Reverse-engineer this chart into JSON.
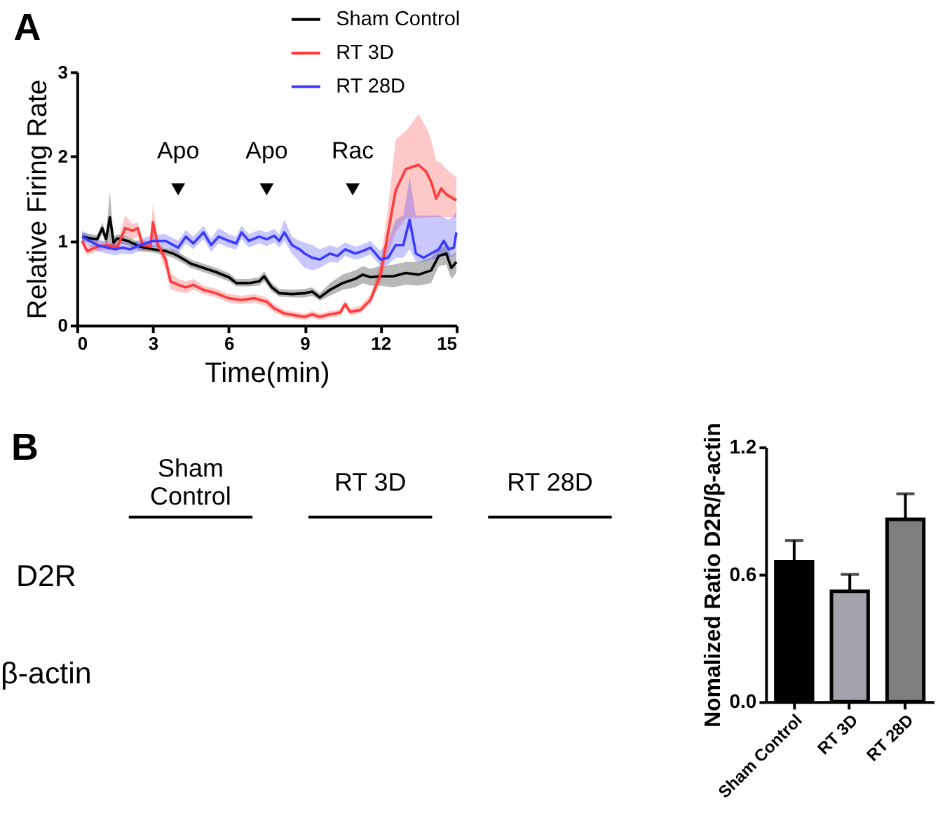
{
  "chart_data": [
    {
      "type": "line",
      "title": "A",
      "xlabel": "Time(min)",
      "ylabel": "Relative Firing Rate",
      "xlim": [
        0,
        15
      ],
      "xticks": [
        0,
        3,
        6,
        9,
        12,
        15
      ],
      "ylim": [
        0,
        3
      ],
      "yticks": [
        0,
        1,
        2,
        3
      ],
      "legend": "top right",
      "series": [
        {
          "name": "Sham Control",
          "color": "#000000",
          "x": [
            0.2,
            0.5,
            0.8,
            1.0,
            1.15,
            1.3,
            1.45,
            1.6,
            2.0,
            2.5,
            3.0,
            3.5,
            3.8,
            4.0,
            4.5,
            5.0,
            5.5,
            6.0,
            6.3,
            6.8,
            7.2,
            7.4,
            7.7,
            8.0,
            8.5,
            9.0,
            9.3,
            9.6,
            10.0,
            10.5,
            11.0,
            11.3,
            11.6,
            12.0,
            12.5,
            13.0,
            13.5,
            14.0,
            14.3,
            14.6,
            14.8,
            15.0
          ],
          "values": [
            1.05,
            1.03,
            1.02,
            1.15,
            1.02,
            1.28,
            0.98,
            1.03,
            1.0,
            0.93,
            0.9,
            0.88,
            0.85,
            0.82,
            0.73,
            0.68,
            0.63,
            0.57,
            0.5,
            0.5,
            0.52,
            0.58,
            0.45,
            0.38,
            0.37,
            0.38,
            0.4,
            0.33,
            0.42,
            0.5,
            0.55,
            0.6,
            0.57,
            0.58,
            0.58,
            0.62,
            0.6,
            0.65,
            0.82,
            0.85,
            0.68,
            0.75
          ],
          "lower": [
            1.0,
            0.98,
            0.97,
            1.08,
            0.96,
            1.0,
            0.93,
            0.98,
            0.95,
            0.88,
            0.86,
            0.83,
            0.8,
            0.77,
            0.68,
            0.63,
            0.58,
            0.52,
            0.46,
            0.46,
            0.47,
            0.52,
            0.4,
            0.34,
            0.33,
            0.33,
            0.35,
            0.29,
            0.35,
            0.42,
            0.45,
            0.5,
            0.47,
            0.47,
            0.45,
            0.48,
            0.47,
            0.5,
            0.7,
            0.72,
            0.55,
            0.62
          ],
          "upper": [
            1.1,
            1.08,
            1.07,
            1.22,
            1.08,
            1.58,
            1.05,
            1.08,
            1.05,
            0.98,
            0.95,
            0.92,
            0.9,
            0.87,
            0.78,
            0.73,
            0.68,
            0.62,
            0.55,
            0.55,
            0.57,
            0.64,
            0.5,
            0.43,
            0.42,
            0.43,
            0.45,
            0.38,
            0.5,
            0.6,
            0.65,
            0.7,
            0.67,
            0.7,
            0.72,
            0.75,
            0.75,
            0.8,
            0.9,
            0.95,
            0.82,
            0.88
          ]
        },
        {
          "name": "RT 3D",
          "color": "#ff3b3b",
          "x": [
            0.2,
            0.4,
            0.8,
            1.2,
            1.6,
            1.9,
            2.2,
            2.4,
            2.6,
            2.9,
            3.0,
            3.2,
            3.5,
            3.7,
            4.0,
            4.3,
            4.6,
            5.0,
            5.5,
            6.0,
            6.5,
            7.0,
            7.5,
            7.8,
            8.2,
            8.6,
            9.0,
            9.3,
            9.6,
            10.0,
            10.4,
            10.6,
            10.8,
            11.2,
            11.6,
            12.0,
            12.3,
            12.6,
            13.0,
            13.5,
            13.8,
            14.0,
            14.2,
            14.4,
            14.6,
            15.0
          ],
          "values": [
            1.0,
            0.88,
            0.93,
            0.95,
            0.93,
            1.15,
            1.12,
            1.15,
            0.95,
            0.93,
            1.22,
            0.95,
            0.78,
            0.52,
            0.48,
            0.45,
            0.48,
            0.42,
            0.38,
            0.32,
            0.3,
            0.32,
            0.28,
            0.2,
            0.14,
            0.12,
            0.1,
            0.13,
            0.1,
            0.13,
            0.15,
            0.25,
            0.16,
            0.18,
            0.3,
            0.6,
            1.1,
            1.6,
            1.85,
            1.9,
            1.82,
            1.7,
            1.5,
            1.62,
            1.55,
            1.48
          ],
          "lower": [
            0.95,
            0.83,
            0.88,
            0.9,
            0.88,
            1.05,
            1.02,
            1.05,
            0.88,
            0.88,
            1.0,
            0.9,
            0.65,
            0.42,
            0.4,
            0.38,
            0.42,
            0.37,
            0.33,
            0.27,
            0.25,
            0.27,
            0.23,
            0.15,
            0.1,
            0.08,
            0.06,
            0.09,
            0.06,
            0.09,
            0.11,
            0.2,
            0.12,
            0.14,
            0.25,
            0.5,
            0.85,
            1.1,
            1.27,
            1.27,
            1.28,
            1.28,
            1.28,
            1.28,
            1.28,
            1.28
          ],
          "upper": [
            1.05,
            0.93,
            0.98,
            1.0,
            0.98,
            1.3,
            1.2,
            1.22,
            1.02,
            0.98,
            1.45,
            1.0,
            0.88,
            0.62,
            0.55,
            0.52,
            0.55,
            0.47,
            0.43,
            0.37,
            0.35,
            0.37,
            0.33,
            0.25,
            0.18,
            0.16,
            0.14,
            0.17,
            0.14,
            0.17,
            0.19,
            0.3,
            0.2,
            0.23,
            0.36,
            0.75,
            1.4,
            2.2,
            2.3,
            2.5,
            2.35,
            2.2,
            1.95,
            1.92,
            1.85,
            1.75
          ]
        },
        {
          "name": "RT 28D",
          "color": "#3b3bff",
          "x": [
            0.2,
            0.5,
            0.8,
            1.2,
            1.5,
            1.8,
            2.1,
            2.5,
            3.0,
            3.5,
            4.0,
            4.3,
            4.6,
            5.0,
            5.3,
            5.6,
            6.0,
            6.3,
            6.5,
            6.8,
            7.2,
            7.5,
            7.8,
            8.0,
            8.2,
            8.5,
            8.8,
            9.0,
            9.3,
            9.6,
            10.0,
            10.3,
            10.6,
            11.0,
            11.3,
            11.6,
            12.0,
            12.3,
            12.6,
            12.9,
            13.15,
            13.4,
            13.7,
            14.0,
            14.3,
            14.5,
            14.7,
            14.9,
            15.0
          ],
          "values": [
            1.05,
            1.0,
            0.95,
            0.92,
            0.9,
            0.92,
            0.9,
            0.95,
            1.0,
            1.0,
            0.92,
            1.05,
            0.97,
            1.1,
            0.95,
            1.05,
            1.0,
            0.97,
            1.1,
            1.0,
            1.05,
            1.02,
            1.06,
            1.0,
            1.1,
            0.95,
            0.9,
            0.85,
            0.8,
            0.78,
            0.85,
            0.82,
            0.9,
            0.85,
            0.88,
            0.92,
            0.78,
            0.8,
            0.95,
            0.95,
            1.25,
            0.85,
            0.8,
            0.85,
            0.9,
            1.0,
            0.9,
            0.92,
            1.1
          ],
          "lower": [
            0.98,
            0.93,
            0.88,
            0.85,
            0.83,
            0.85,
            0.84,
            0.88,
            0.93,
            0.93,
            0.85,
            0.97,
            0.9,
            1.02,
            0.87,
            0.97,
            0.92,
            0.9,
            1.02,
            0.92,
            0.97,
            0.94,
            0.98,
            0.92,
            1.0,
            0.85,
            0.75,
            0.68,
            0.65,
            0.68,
            0.75,
            0.74,
            0.82,
            0.78,
            0.8,
            0.84,
            0.7,
            0.72,
            0.8,
            0.8,
            0.9,
            0.75,
            0.75,
            0.78,
            0.8,
            0.85,
            0.8,
            0.82,
            0.9
          ],
          "upper": [
            1.12,
            1.07,
            1.02,
            0.99,
            0.97,
            0.99,
            0.97,
            1.02,
            1.07,
            1.08,
            1.0,
            1.13,
            1.05,
            1.18,
            1.03,
            1.15,
            1.08,
            1.05,
            1.18,
            1.08,
            1.13,
            1.1,
            1.14,
            1.08,
            1.25,
            1.05,
            1.0,
            0.98,
            0.95,
            0.9,
            0.95,
            0.92,
            0.98,
            0.93,
            0.96,
            1.0,
            0.88,
            1.0,
            1.25,
            1.3,
            1.75,
            1.3,
            1.3,
            1.3,
            1.3,
            1.28,
            1.25,
            1.3,
            1.35
          ]
        },
        {
          "type": "scatter",
          "color": "#000000",
          "marker": "triangle",
          "x": [
            4.0,
            7.5,
            10.9
          ],
          "values": [
            1.61,
            1.61,
            1.61
          ]
        }
      ],
      "annotations": [
        {
          "text": "Apo",
          "x": 4.0,
          "y": 1.61
        },
        {
          "text": "Apo",
          "x": 7.5,
          "y": 1.61
        },
        {
          "text": "Rac",
          "x": 10.9,
          "y": 1.61
        }
      ]
    },
    {
      "type": "other",
      "title": "B",
      "categories": [
        "Sham Control",
        "RT 3D",
        "RT 28D"
      ],
      "y_categories": [
        "D2R",
        "β-actin"
      ]
    },
    {
      "type": "bar",
      "ylabel": "Nomalized Ratio D2R/β-actin",
      "categories": [
        "Sham Control",
        "RT 3D",
        "RT 28D"
      ],
      "values": [
        0.66,
        0.52,
        0.86
      ],
      "colors": [
        "#000000",
        "#a3a3ab",
        "#7f7f7f"
      ],
      "errors": [
        [
          0.66,
          0.76
        ],
        [
          0.52,
          0.6
        ],
        [
          0.86,
          0.98
        ]
      ],
      "ylim": [
        0,
        1.2
      ],
      "yticks": [
        {
          "value": 0,
          "label": "0.0"
        },
        0.6,
        1.2
      ]
    }
  ]
}
